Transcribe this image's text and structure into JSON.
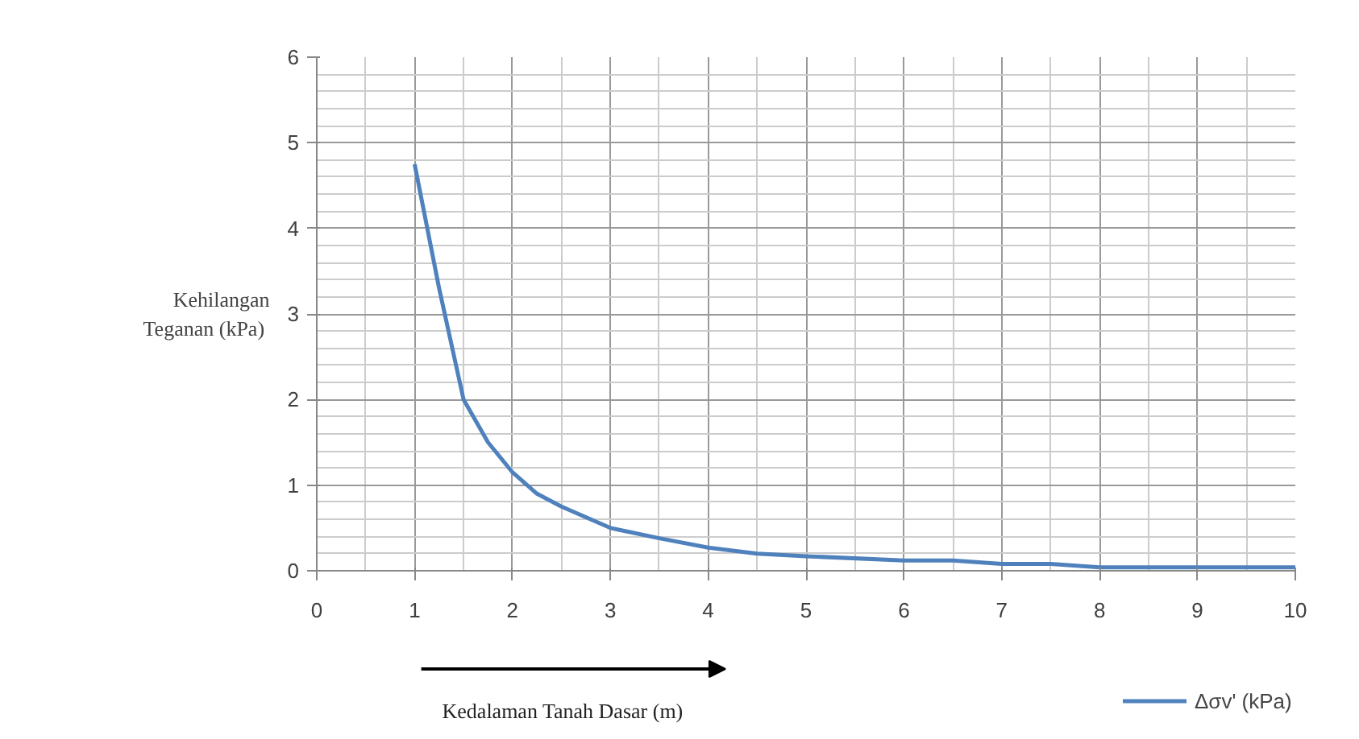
{
  "chart_data": {
    "type": "line",
    "xlabel": "Kedalaman Tanah Dasar (m)",
    "ylabel": "Kehilangan\nTeganan  (kPa)",
    "x": [
      1,
      1.25,
      1.5,
      1.75,
      2,
      2.25,
      2.5,
      3,
      3.5,
      4,
      4.5,
      5,
      6,
      6.5,
      7,
      7.5,
      8,
      9,
      10
    ],
    "series": [
      {
        "name": "Δσv' (kPa)",
        "color": "#4f81bd",
        "values": [
          4.75,
          3.3,
          2.0,
          1.5,
          1.15,
          0.9,
          0.75,
          0.5,
          0.38,
          0.27,
          0.2,
          0.17,
          0.12,
          0.12,
          0.08,
          0.08,
          0.04,
          0.04,
          0.04
        ]
      }
    ],
    "xlim": [
      0,
      10
    ],
    "xticks": [
      0,
      1,
      2,
      3,
      4,
      5,
      6,
      7,
      8,
      9,
      10
    ],
    "ylim": [
      0,
      6
    ],
    "yticks": [
      0,
      1,
      2,
      3,
      4,
      5,
      6
    ],
    "grid": true,
    "legend": "bottom",
    "line_style": "solid",
    "marker": "none"
  }
}
